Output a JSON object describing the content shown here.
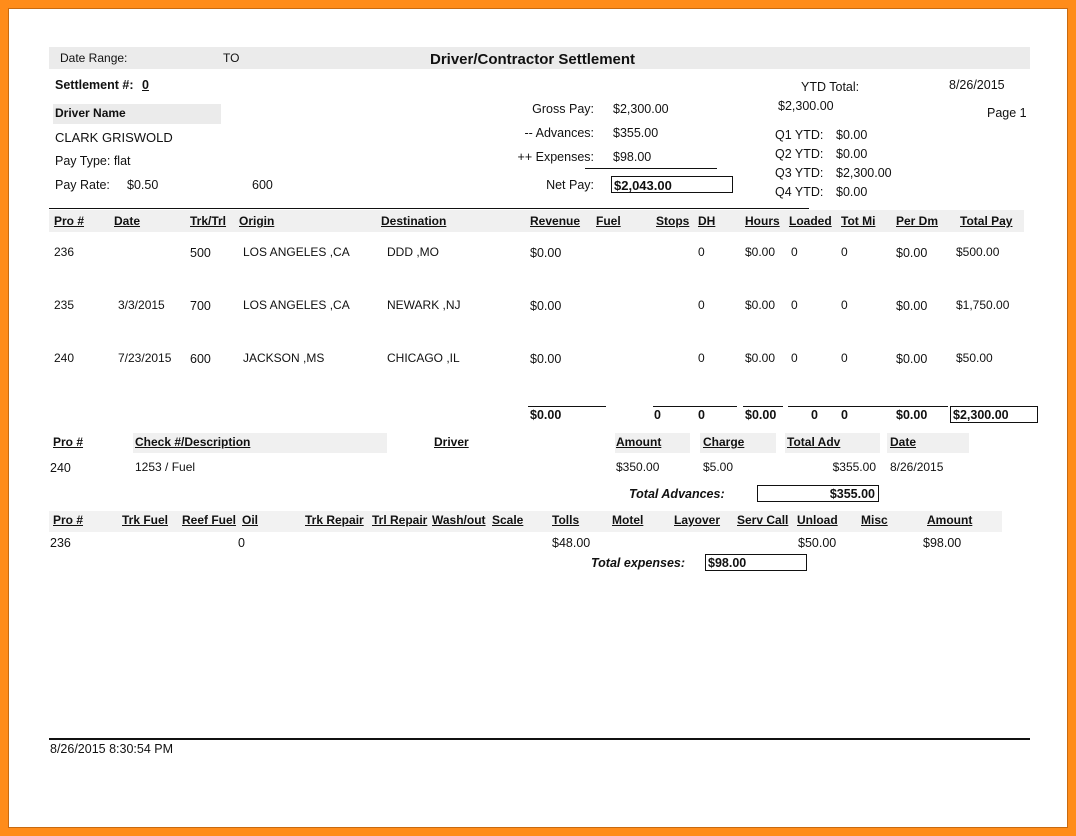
{
  "report": {
    "date_range_label": "Date Range:",
    "to_label": "TO",
    "title": "Driver/Contractor Settlement",
    "settlement_label": "Settlement #:",
    "settlement_no": "0",
    "driver_name_label": "Driver Name",
    "driver_name": "CLARK GRISWOLD",
    "pay_type": "Pay Type: flat",
    "pay_rate_label": "Pay Rate:",
    "pay_rate": "$0.50",
    "pay_rate_extra": "600",
    "gross_pay_label": "Gross Pay:",
    "gross_pay": "$2,300.00",
    "advances_label": "-- Advances:",
    "advances": "$355.00",
    "expenses_label": "++ Expenses:",
    "expenses": "$98.00",
    "net_pay_label": "Net Pay:",
    "net_pay": "$2,043.00",
    "ytd_label": "YTD Total:",
    "ytd_value": "$2,300.00",
    "report_date": "8/26/2015",
    "page": "Page 1",
    "quarters": [
      {
        "label": "Q1 YTD:",
        "value": "$0.00"
      },
      {
        "label": "Q2 YTD:",
        "value": "$0.00"
      },
      {
        "label": "Q3 YTD:",
        "value": "$2,300.00"
      },
      {
        "label": "Q4 YTD:",
        "value": "$0.00"
      }
    ],
    "footer_timestamp": "8/26/2015 8:30:54 PM"
  },
  "trips": {
    "headers": [
      "Pro #",
      "Date",
      "Trk/Trl",
      "Origin",
      "Destination",
      "Revenue",
      "Fuel",
      "Stops",
      "DH",
      "Hours",
      "Loaded",
      "Tot Mi",
      "Per Dm",
      "Total Pay"
    ],
    "rows": [
      {
        "pro": "236",
        "date": "",
        "trk": "500",
        "origin": "LOS ANGELES ,CA",
        "dest": "DDD ,MO",
        "revenue": "$0.00",
        "dh": "0",
        "hours": "$0.00",
        "loaded": "0",
        "totmi": "0",
        "perdm": "$0.00",
        "totalpay": "$500.00"
      },
      {
        "pro": "235",
        "date": "3/3/2015",
        "trk": "700",
        "origin": "LOS ANGELES ,CA",
        "dest": "NEWARK ,NJ",
        "revenue": "$0.00",
        "dh": "0",
        "hours": "$0.00",
        "loaded": "0",
        "totmi": "0",
        "perdm": "$0.00",
        "totalpay": "$1,750.00"
      },
      {
        "pro": "240",
        "date": "7/23/2015",
        "trk": "600",
        "origin": "JACKSON ,MS",
        "dest": "CHICAGO ,IL",
        "revenue": "$0.00",
        "dh": "0",
        "hours": "$0.00",
        "loaded": "0",
        "totmi": "0",
        "perdm": "$0.00",
        "totalpay": "$50.00"
      }
    ],
    "totals": {
      "revenue": "$0.00",
      "stops": "0",
      "dh": "0",
      "hours": "$0.00",
      "loaded": "0",
      "totmi": "0",
      "perdm": "$0.00",
      "totalpay": "$2,300.00"
    }
  },
  "advances": {
    "headers": [
      "Pro #",
      "Check #/Description",
      "Driver",
      "Amount",
      "Charge",
      "Total Adv",
      "Date"
    ],
    "row": {
      "pro": "240",
      "desc": "1253 / Fuel",
      "amount": "$350.00",
      "charge": "$5.00",
      "total": "$355.00",
      "date": "8/26/2015"
    },
    "total_label": "Total Advances:",
    "total": "$355.00"
  },
  "expenses": {
    "headers": [
      "Pro #",
      "Trk Fuel",
      "Reef Fuel",
      "Oil",
      "Trk Repair",
      "Trl Repair",
      "Wash/out",
      "Scale",
      "Tolls",
      "Motel",
      "Layover",
      "Serv Call",
      "Unload",
      "Misc",
      "Amount"
    ],
    "row": {
      "pro": "236",
      "oil": "0",
      "tolls": "$48.00",
      "unload": "$50.00",
      "amount": "$98.00"
    },
    "total_label": "Total expenses:",
    "total": "$98.00"
  }
}
